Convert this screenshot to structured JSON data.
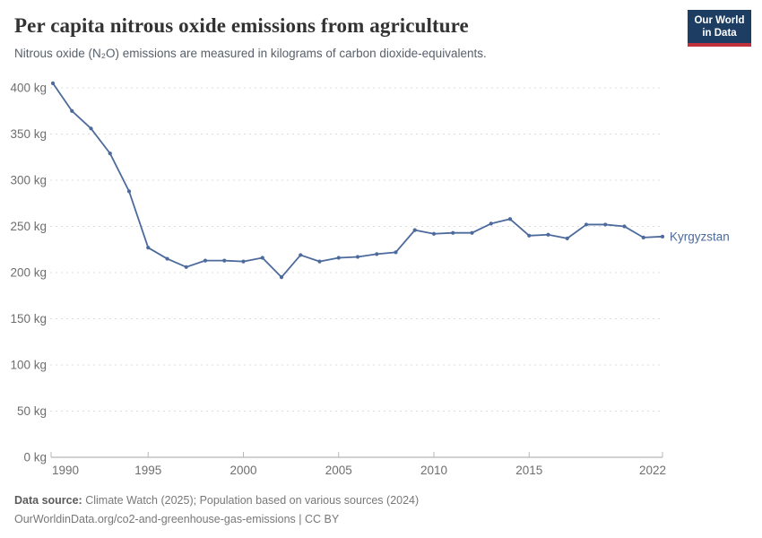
{
  "header": {
    "title": "Per capita nitrous oxide emissions from agriculture",
    "subtitle": "Nitrous oxide (N₂O) emissions are measured in kilograms of carbon dioxide-equivalents."
  },
  "logo": {
    "line1": "Our World",
    "line2": "in Data",
    "bg_color": "#1d3d63",
    "bar_color": "#c0313c"
  },
  "chart_data": {
    "type": "line",
    "title": "Per capita nitrous oxide emissions from agriculture",
    "xlabel": "",
    "ylabel": "kg",
    "x": [
      1990,
      1991,
      1992,
      1993,
      1994,
      1995,
      1996,
      1997,
      1998,
      1999,
      2000,
      2001,
      2002,
      2003,
      2004,
      2005,
      2006,
      2007,
      2008,
      2009,
      2010,
      2011,
      2012,
      2013,
      2014,
      2015,
      2016,
      2017,
      2018,
      2019,
      2020,
      2021,
      2022
    ],
    "series": [
      {
        "name": "Kyrgyzstan",
        "color": "#4c6a9c",
        "values": [
          405,
          375,
          356,
          329,
          288,
          227,
          215,
          206,
          213,
          213,
          212,
          216,
          195,
          219,
          212,
          216,
          217,
          220,
          222,
          246,
          242,
          243,
          243,
          253,
          258,
          240,
          241,
          237,
          252,
          252,
          250,
          238,
          239
        ]
      }
    ],
    "ylim": [
      0,
      400
    ],
    "ytick_values": [
      0,
      50,
      100,
      150,
      200,
      250,
      300,
      350,
      400
    ],
    "ytick_labels": [
      "0 kg",
      "50 kg",
      "100 kg",
      "150 kg",
      "200 kg",
      "250 kg",
      "300 kg",
      "350 kg",
      "400 kg"
    ],
    "xtick_values": [
      1990,
      1995,
      2000,
      2005,
      2010,
      2015,
      2022
    ],
    "xtick_labels": [
      "1990",
      "1995",
      "2000",
      "2005",
      "2010",
      "2015",
      "2022"
    ],
    "grid": "horizontal-dashed",
    "legend_position": "end-of-line",
    "colors": {
      "grid": "#dcdcdc",
      "axis": "#a3a3a3",
      "tick": "#b8b8b8",
      "tick_text": "#6e6e6e"
    }
  },
  "footer": {
    "datasource_label": "Data source:",
    "datasource_text": " Climate Watch (2025); Population based on various sources (2024)",
    "citation": "OurWorldinData.org/co2-and-greenhouse-gas-emissions | CC BY"
  }
}
